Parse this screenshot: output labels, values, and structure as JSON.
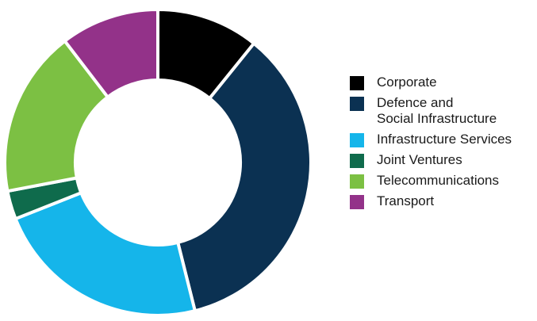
{
  "chart_data": {
    "type": "pie",
    "variant": "donut",
    "title": "",
    "legend_position": "right",
    "series": [
      {
        "name": "Corporate",
        "value": 10.8,
        "color": "#000000"
      },
      {
        "name": "Defence and\nSocial Infrastructure",
        "value": 35.3,
        "color": "#0b3152"
      },
      {
        "name": "Infrastructure Services",
        "value": 22.9,
        "color": "#15b5ea"
      },
      {
        "name": "Joint Ventures",
        "value": 3.0,
        "color": "#0f6b4c"
      },
      {
        "name": "Telecommunications",
        "value": 17.6,
        "color": "#7cc043"
      },
      {
        "name": "Transport",
        "value": 10.4,
        "color": "#933289"
      }
    ]
  }
}
